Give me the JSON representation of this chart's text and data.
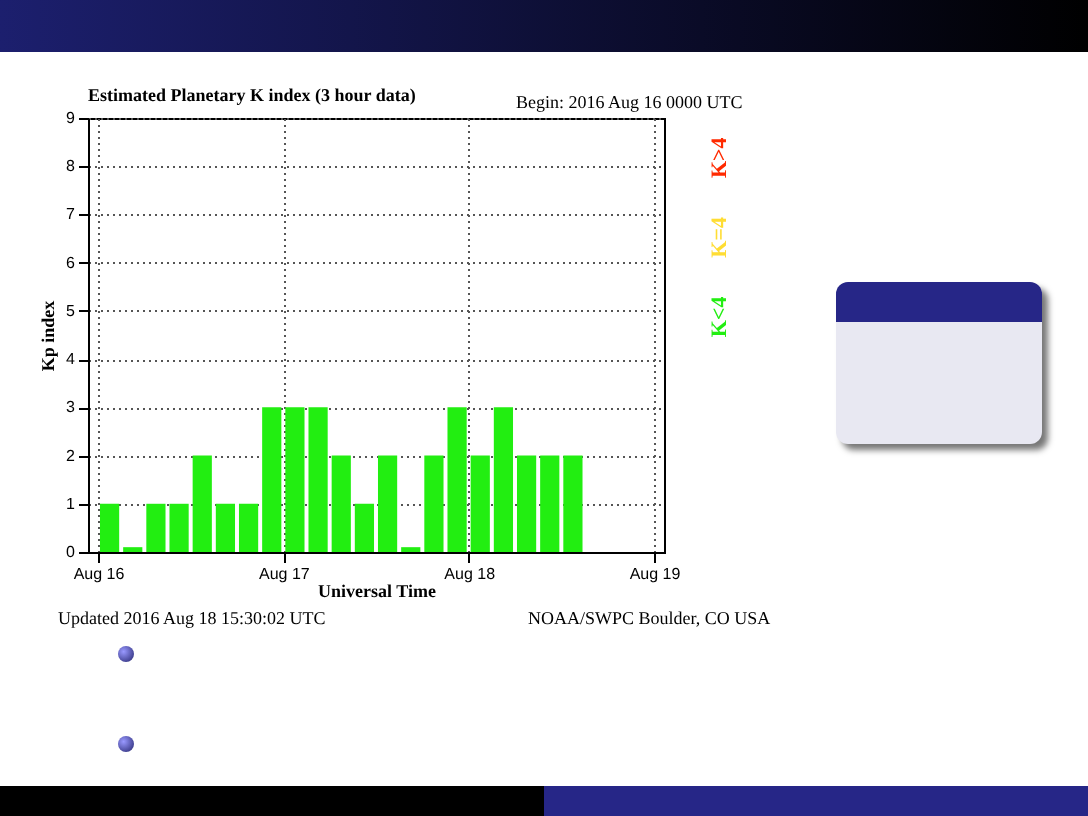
{
  "chart_data": {
    "type": "bar",
    "title": "Estimated Planetary K index (3 hour data)",
    "xlabel": "Universal Time",
    "ylabel": "Kp index",
    "x": [
      "2016-08-16T01:30",
      "2016-08-16T04:30",
      "2016-08-16T07:30",
      "2016-08-16T10:30",
      "2016-08-16T13:30",
      "2016-08-16T16:30",
      "2016-08-16T19:30",
      "2016-08-16T22:30",
      "2016-08-17T01:30",
      "2016-08-17T04:30",
      "2016-08-17T07:30",
      "2016-08-17T10:30",
      "2016-08-17T13:30",
      "2016-08-17T16:30",
      "2016-08-17T19:30",
      "2016-08-17T22:30",
      "2016-08-18T01:30",
      "2016-08-18T04:30",
      "2016-08-18T07:30",
      "2016-08-18T10:30",
      "2016-08-18T13:30"
    ],
    "series": [
      {
        "name": "K>4",
        "color": "#ff2a00",
        "values": [
          null,
          null,
          null,
          null,
          null,
          null,
          null,
          null,
          null,
          null,
          null,
          null,
          null,
          null,
          null,
          null,
          null,
          null,
          null,
          null,
          null
        ]
      },
      {
        "name": "K=4",
        "color": "#ffdd33",
        "values": [
          null,
          null,
          null,
          null,
          null,
          null,
          null,
          null,
          null,
          null,
          null,
          null,
          null,
          null,
          null,
          null,
          null,
          null,
          null,
          null,
          null
        ]
      },
      {
        "name": "K<4",
        "color": "#22ee11",
        "values": [
          1,
          0.1,
          1,
          1,
          2,
          1,
          1,
          3,
          3,
          3,
          2,
          1,
          2,
          0.1,
          2,
          3,
          2,
          3,
          2,
          2,
          2
        ]
      }
    ],
    "xlim": [
      "2016-08-16",
      "2016-08-19"
    ],
    "xticks": [
      {
        "value": "2016-08-16",
        "label": "Aug 16"
      },
      {
        "value": "2016-08-17",
        "label": "Aug 17"
      },
      {
        "value": "2016-08-18",
        "label": "Aug 18"
      },
      {
        "value": "2016-08-19",
        "label": "Aug 19"
      }
    ],
    "ylim": [
      0,
      9
    ],
    "yticks": [
      0,
      1,
      2,
      3,
      4,
      5,
      6,
      7,
      8,
      9
    ],
    "grid": true,
    "legend": "right",
    "annotations": [
      "Begin:  2016 Aug 16 0000 UTC",
      "Updated 2016 Aug 18 15:30:02 UTC",
      "NOAA/SWPC Boulder, CO USA"
    ]
  }
}
